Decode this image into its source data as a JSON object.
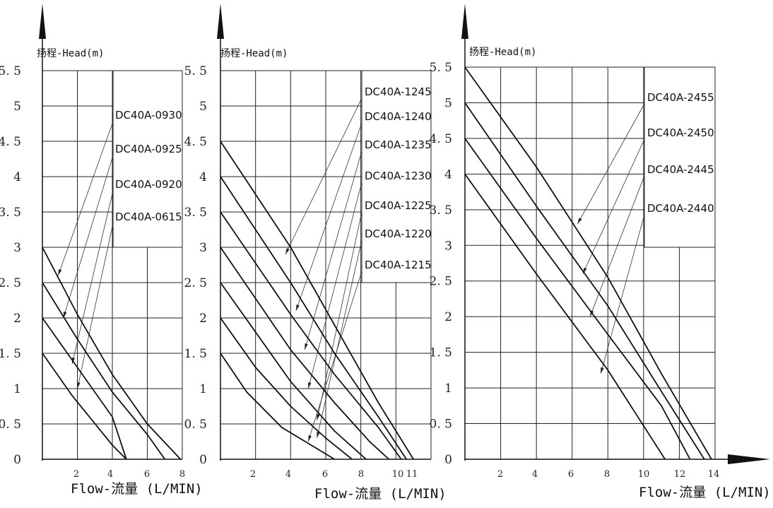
{
  "chart_data": [
    {
      "type": "line",
      "ylabel": "扬程-Head(m)",
      "xlabel": "Flow-流量(L/MIN)",
      "x_ticks": [
        "2",
        "4",
        "6",
        "8"
      ],
      "y_ticks": [
        "0",
        "0.5",
        "1",
        "1.5",
        "2",
        "2.5",
        "3",
        "3.5",
        "4",
        "4.5",
        "5",
        "5.5"
      ],
      "xlim": [
        0,
        8
      ],
      "ylim": [
        0,
        5.5
      ],
      "grid": true,
      "series": [
        {
          "name": "DC40A-0930",
          "points": [
            [
              0,
              3
            ],
            [
              2,
              2.05
            ],
            [
              4,
              1.2
            ],
            [
              6,
              0.5
            ],
            [
              7.9,
              0
            ]
          ]
        },
        {
          "name": "DC40A-0925",
          "points": [
            [
              0,
              2.5
            ],
            [
              2,
              1.7
            ],
            [
              4,
              0.95
            ],
            [
              6,
              0.35
            ],
            [
              7,
              0
            ]
          ]
        },
        {
          "name": "DC40A-0920",
          "points": [
            [
              0,
              2
            ],
            [
              2,
              1.3
            ],
            [
              4,
              0.6
            ],
            [
              4.8,
              0
            ]
          ]
        },
        {
          "name": "DC40A-0615",
          "points": [
            [
              0,
              1.5
            ],
            [
              1.7,
              0.9
            ],
            [
              4,
              0.2
            ],
            [
              4.8,
              0
            ]
          ]
        }
      ]
    },
    {
      "type": "line",
      "ylabel": "扬程-Head(m)",
      "xlabel": "Flow-流量(L/MIN)",
      "x_ticks": [
        "2",
        "4",
        "6",
        "8",
        "10",
        "11"
      ],
      "y_ticks": [
        "0",
        "0.5",
        "1",
        "1.5",
        "2",
        "2.5",
        "3",
        "3.5",
        "4",
        "4.5",
        "5",
        "5.5"
      ],
      "xlim": [
        0,
        12
      ],
      "ylim": [
        0,
        5.5
      ],
      "grid": true,
      "series": [
        {
          "name": "DC40A-1245",
          "points": [
            [
              0,
              4.5
            ],
            [
              4,
              3
            ],
            [
              6.5,
              1.9
            ],
            [
              9,
              0.8
            ],
            [
              11,
              0
            ]
          ]
        },
        {
          "name": "DC40A-1240",
          "points": [
            [
              0,
              4
            ],
            [
              4,
              2.5
            ],
            [
              6.5,
              1.5
            ],
            [
              9,
              0.6
            ],
            [
              10.6,
              0
            ]
          ]
        },
        {
          "name": "DC40A-1235",
          "points": [
            [
              0,
              3.5
            ],
            [
              4,
              2.05
            ],
            [
              6.5,
              1.2
            ],
            [
              9,
              0.45
            ],
            [
              10.3,
              0
            ]
          ]
        },
        {
          "name": "DC40A-1230",
          "points": [
            [
              0,
              3
            ],
            [
              4,
              1.55
            ],
            [
              6.5,
              0.8
            ],
            [
              8.5,
              0.25
            ],
            [
              9.6,
              0
            ]
          ]
        },
        {
          "name": "DC40A-1225",
          "points": [
            [
              0,
              2.5
            ],
            [
              4,
              1.1
            ],
            [
              6.5,
              0.4
            ],
            [
              8.3,
              0
            ]
          ]
        },
        {
          "name": "DC40A-1220",
          "points": [
            [
              0,
              2
            ],
            [
              2,
              1.3
            ],
            [
              4,
              0.75
            ],
            [
              6,
              0.3
            ],
            [
              7.5,
              0
            ]
          ]
        },
        {
          "name": "DC40A-1215",
          "points": [
            [
              0,
              1.5
            ],
            [
              1.5,
              0.95
            ],
            [
              3.5,
              0.45
            ],
            [
              5.5,
              0.15
            ],
            [
              6.5,
              0
            ]
          ]
        }
      ]
    },
    {
      "type": "line",
      "ylabel": "扬程-Head(m)",
      "xlabel": "Flow-流量(L/MIN)",
      "x_ticks": [
        "2",
        "4",
        "6",
        "8",
        "10",
        "12",
        "14"
      ],
      "y_ticks": [
        "0",
        "0.5",
        "1",
        "1.5",
        "2",
        "2.5",
        "3",
        "3.5",
        "4",
        "4.5",
        "5",
        "5.5"
      ],
      "xlim": [
        0,
        14
      ],
      "ylim": [
        0,
        5.5
      ],
      "grid": true,
      "series": [
        {
          "name": "DC40A-2455",
          "points": [
            [
              0,
              5.5
            ],
            [
              4,
              4.1
            ],
            [
              8,
              2.55
            ],
            [
              11,
              1.2
            ],
            [
              13.8,
              0
            ]
          ]
        },
        {
          "name": "DC40A-2450",
          "points": [
            [
              0,
              5
            ],
            [
              4,
              3.55
            ],
            [
              8,
              2.15
            ],
            [
              11,
              0.95
            ],
            [
              13.4,
              0
            ]
          ]
        },
        {
          "name": "DC40A-2445",
          "points": [
            [
              0,
              4.5
            ],
            [
              4,
              3.1
            ],
            [
              8,
              1.75
            ],
            [
              11,
              0.75
            ],
            [
              12.6,
              0
            ]
          ]
        },
        {
          "name": "DC40A-2440",
          "points": [
            [
              0,
              4
            ],
            [
              4,
              2.6
            ],
            [
              8,
              1.25
            ],
            [
              11.2,
              0
            ]
          ]
        }
      ]
    }
  ]
}
